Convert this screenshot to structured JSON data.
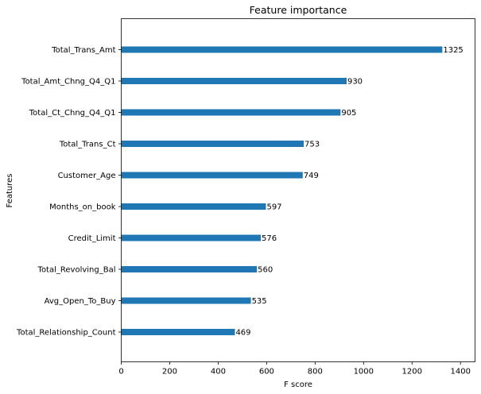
{
  "chart_data": {
    "type": "bar",
    "orientation": "horizontal",
    "title": "Feature importance",
    "xlabel": "F score",
    "ylabel": "Features",
    "xlim": [
      0,
      1460
    ],
    "xticks": [
      0,
      200,
      400,
      600,
      800,
      1000,
      1200,
      1400
    ],
    "grid": false,
    "bar_color": "#1f77b4",
    "categories": [
      "Total_Trans_Amt",
      "Total_Amt_Chng_Q4_Q1",
      "Total_Ct_Chng_Q4_Q1",
      "Total_Trans_Ct",
      "Customer_Age",
      "Months_on_book",
      "Credit_Limit",
      "Total_Revolving_Bal",
      "Avg_Open_To_Buy",
      "Total_Relationship_Count"
    ],
    "values": [
      1325,
      930,
      905,
      753,
      749,
      597,
      576,
      560,
      535,
      469
    ]
  }
}
